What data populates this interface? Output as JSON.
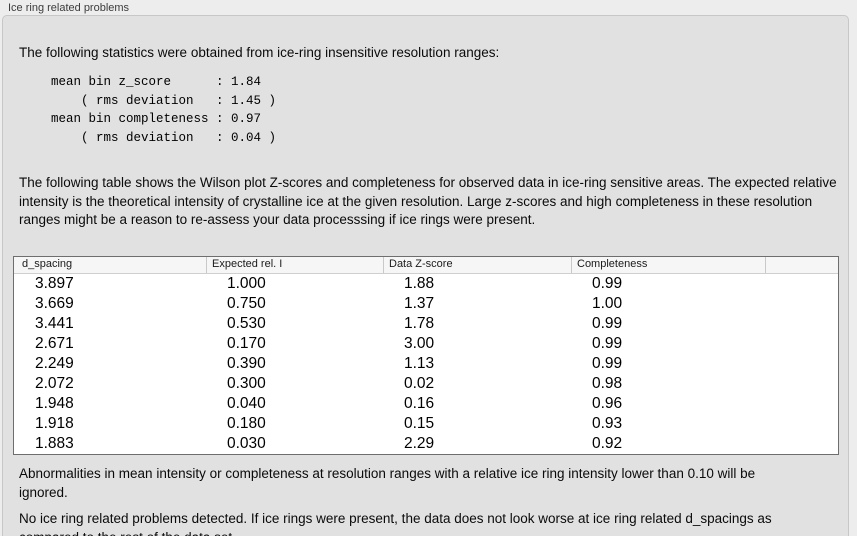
{
  "panel": {
    "title": "Ice ring related problems"
  },
  "stats": {
    "intro": "The following statistics were obtained from ice-ring insensitive resolution ranges:",
    "block": "mean bin z_score      : 1.84\n    ( rms deviation   : 1.45 )\nmean bin completeness : 0.97\n    ( rms deviation   : 0.04 )",
    "mean_bin_z_score": "1.84",
    "z_score_rms_deviation": "1.45",
    "mean_bin_completeness": "0.97",
    "completeness_rms_deviation": "0.04"
  },
  "description": "The following table shows the Wilson plot Z-scores and completeness for observed data in ice-ring sensitive areas. The expected relative intensity is the theoretical intensity of crystalline ice at the given resolution. Large z-scores and high completeness in these resolution ranges might be a reason to re-assess your data processsing if ice rings were present.",
  "table": {
    "headers": [
      "d_spacing",
      "Expected rel. I",
      "Data Z-score",
      "Completeness",
      ""
    ],
    "rows": [
      [
        "3.897",
        "1.000",
        "1.88",
        "0.99",
        ""
      ],
      [
        "3.669",
        "0.750",
        "1.37",
        "1.00",
        ""
      ],
      [
        "3.441",
        "0.530",
        "1.78",
        "0.99",
        ""
      ],
      [
        "2.671",
        "0.170",
        "3.00",
        "0.99",
        ""
      ],
      [
        "2.249",
        "0.390",
        "1.13",
        "0.99",
        ""
      ],
      [
        "2.072",
        "0.300",
        "0.02",
        "0.98",
        ""
      ],
      [
        "1.948",
        "0.040",
        "0.16",
        "0.96",
        ""
      ],
      [
        "1.918",
        "0.180",
        "0.15",
        "0.93",
        ""
      ],
      [
        "1.883",
        "0.030",
        "2.29",
        "0.92",
        ""
      ]
    ]
  },
  "note_ignore": "Abnormalities in mean intensity or completeness at resolution ranges with a relative ice ring intensity lower than 0.10 will be ignored.",
  "conclusion": "No ice ring related problems detected. If ice rings were present, the data does not look worse at ice ring related d_spacings as compared to the rest of the data set.",
  "colors": {
    "page_background": "#ededed",
    "panel_background": "#e1e1e1",
    "table_border": "#6e6e6e",
    "text": "#0a0a0a"
  }
}
